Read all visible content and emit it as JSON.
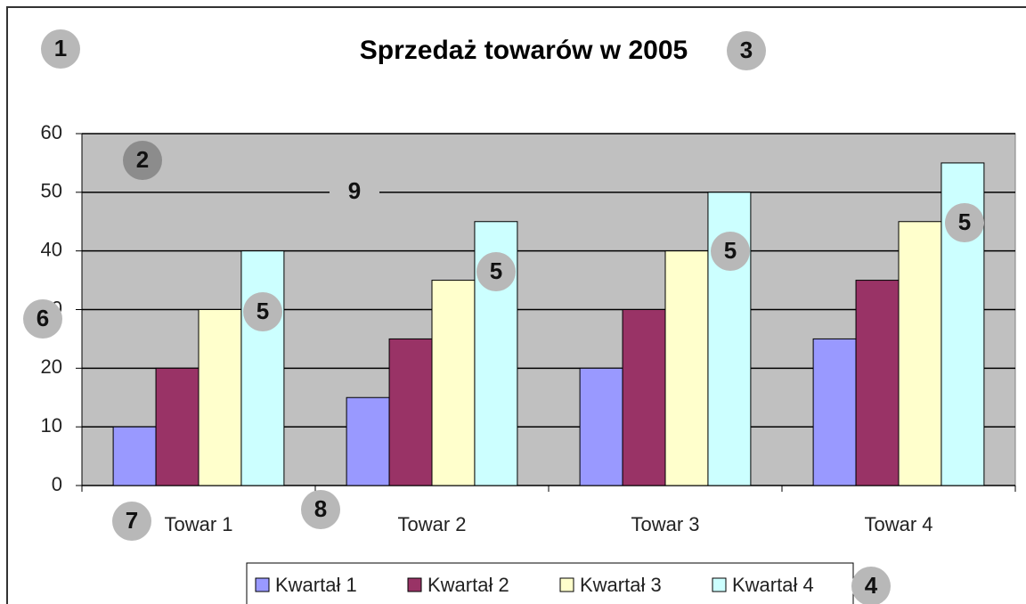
{
  "chart_data": {
    "type": "bar",
    "title": "Sprzedaż towarów w 2005",
    "categories": [
      "Towar 1",
      "Towar 2",
      "Towar 3",
      "Towar 4"
    ],
    "series": [
      {
        "name": "Kwartał 1",
        "color": "#9999ff",
        "values": [
          10,
          15,
          20,
          25
        ]
      },
      {
        "name": "Kwartał 2",
        "color": "#993366",
        "values": [
          20,
          25,
          30,
          35
        ]
      },
      {
        "name": "Kwartał 3",
        "color": "#ffffcc",
        "values": [
          30,
          35,
          40,
          45
        ]
      },
      {
        "name": "Kwartał 4",
        "color": "#ccffff",
        "values": [
          40,
          45,
          50,
          55
        ]
      }
    ],
    "ylim": [
      0,
      60
    ],
    "yticks": [
      0,
      10,
      20,
      30,
      40,
      50,
      60
    ],
    "grid": true,
    "legend": "bottom",
    "annotations": [
      "1",
      "2",
      "3",
      "4",
      "5",
      "5",
      "5",
      "5",
      "6",
      "7",
      "8",
      "9"
    ]
  }
}
